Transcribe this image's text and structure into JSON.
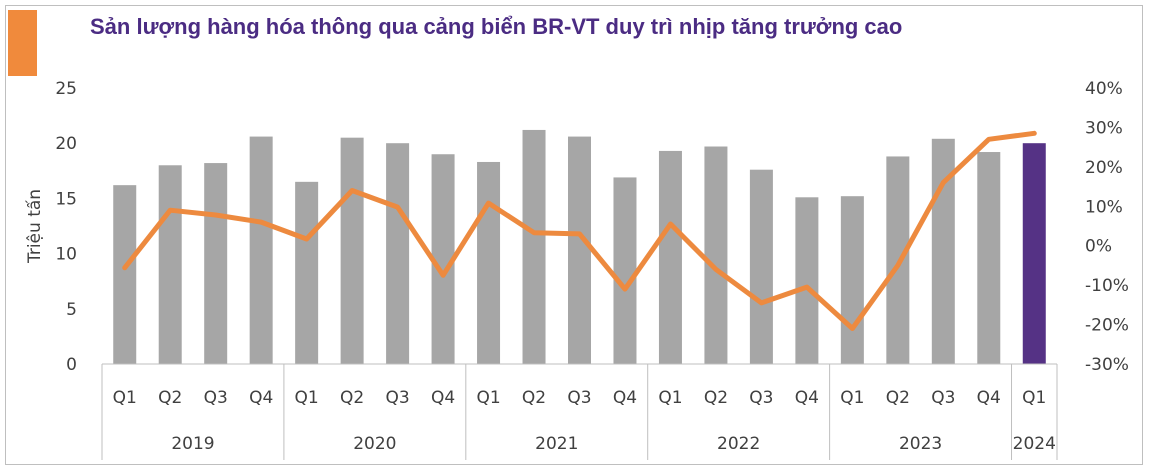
{
  "title": "Sản lượng hàng hóa thông qua cảng biển BR-VT duy trì nhịp tăng trưởng cao",
  "colors": {
    "accent": "#f08a3c",
    "title": "#4b2c83",
    "bar": "#a6a6a6",
    "bar_highlight": "#553285",
    "line": "#ed8a3f"
  },
  "chart_data": {
    "type": "bar",
    "ylabel": "Triệu tấn",
    "ylim": [
      0,
      25
    ],
    "y_ticks": [
      "0",
      "5",
      "10",
      "15",
      "20",
      "25"
    ],
    "y2lim": [
      -30,
      40
    ],
    "y2_ticks": [
      "-30%",
      "-20%",
      "-10%",
      "0%",
      "10%",
      "20%",
      "30%",
      "40%"
    ],
    "quarters": [
      "Q1",
      "Q2",
      "Q3",
      "Q4",
      "Q1",
      "Q2",
      "Q3",
      "Q4",
      "Q1",
      "Q2",
      "Q3",
      "Q4",
      "Q1",
      "Q2",
      "Q3",
      "Q4",
      "Q1",
      "Q2",
      "Q3",
      "Q4",
      "Q1"
    ],
    "years": [
      {
        "label": "2019",
        "count": 4
      },
      {
        "label": "2020",
        "count": 4
      },
      {
        "label": "2021",
        "count": 4
      },
      {
        "label": "2022",
        "count": 4
      },
      {
        "label": "2023",
        "count": 4
      },
      {
        "label": "2024",
        "count": 1
      }
    ],
    "grid": false,
    "series": [
      {
        "type": "bar",
        "axis": "left",
        "values": [
          16.2,
          18.0,
          18.2,
          20.6,
          16.5,
          20.5,
          20.0,
          19.0,
          18.3,
          21.2,
          20.6,
          16.9,
          19.3,
          19.7,
          17.6,
          15.1,
          15.2,
          18.8,
          20.4,
          19.2,
          20.0
        ],
        "highlight_index": 20
      },
      {
        "type": "line",
        "axis": "right",
        "values": [
          -5.6,
          9.0,
          7.8,
          6.0,
          1.7,
          14.0,
          9.8,
          -7.5,
          10.8,
          3.3,
          3.0,
          -11.0,
          5.5,
          -6.0,
          -14.5,
          -10.5,
          -21.0,
          -5.0,
          16.0,
          27.0,
          28.5
        ]
      }
    ]
  }
}
